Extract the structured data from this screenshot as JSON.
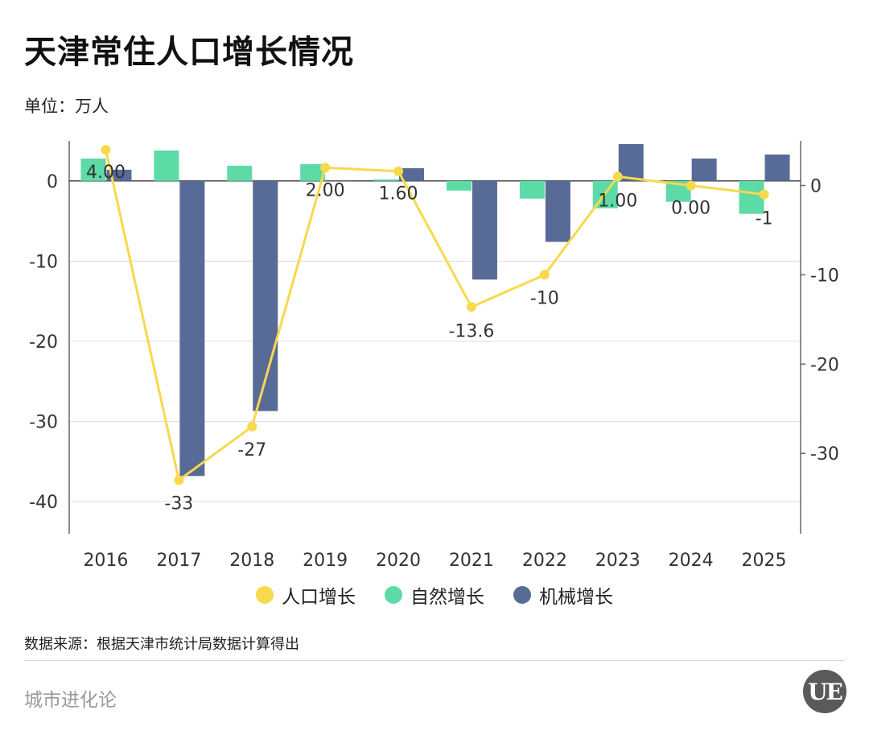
{
  "title": "天津常住人口增长情况",
  "unit_label": "单位：万人",
  "source": "数据来源：根据天津市统计局数据计算得出",
  "brand": "城市进化论",
  "logo_text": "UE",
  "legend": [
    {
      "label": "人口增长",
      "color": "#F7D94C"
    },
    {
      "label": "自然增长",
      "color": "#5DDBA6"
    },
    {
      "label": "机械增长",
      "color": "#586A96"
    }
  ],
  "chart_data": {
    "type": "bar",
    "categories": [
      "2016",
      "2017",
      "2018",
      "2019",
      "2020",
      "2021",
      "2022",
      "2023",
      "2024",
      "2025"
    ],
    "series": [
      {
        "name": "人口增长",
        "type": "line",
        "axis": "right",
        "color": "#F7D94C",
        "values": [
          4.0,
          -33,
          -27,
          2.0,
          1.6,
          -13.6,
          -10,
          1.0,
          0.0,
          -1
        ],
        "labels": [
          "4.00",
          "-33",
          "-27",
          "2.00",
          "1.60",
          "-13.6",
          "-10",
          "1.00",
          "0.00",
          "-1"
        ]
      },
      {
        "name": "自然增长",
        "type": "bar",
        "axis": "left",
        "color": "#5DDBA6",
        "values": [
          2.8,
          3.8,
          1.9,
          2.1,
          0.2,
          -1.2,
          -2.2,
          -3.4,
          -2.6,
          -4.1
        ]
      },
      {
        "name": "机械增长",
        "type": "bar",
        "axis": "left",
        "color": "#586A96",
        "values": [
          1.4,
          -36.8,
          -28.7,
          0.0,
          1.6,
          -12.3,
          -7.6,
          4.6,
          2.8,
          3.3
        ]
      }
    ],
    "left_axis": {
      "ylim": [
        -44,
        5
      ],
      "ticks": [
        0,
        -10,
        -20,
        -30,
        -40
      ]
    },
    "right_axis": {
      "ylim": [
        -39,
        5
      ],
      "ticks": [
        0,
        -10,
        -20,
        -30
      ]
    },
    "grid": true,
    "legend_position": "bottom"
  }
}
